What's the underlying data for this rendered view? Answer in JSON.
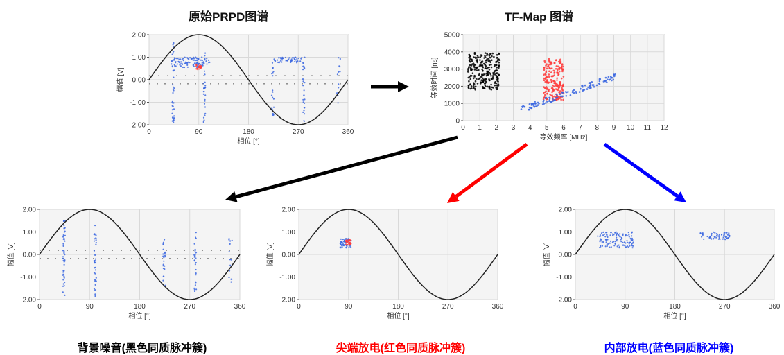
{
  "titles": {
    "prpd": "原始PRPD图谱",
    "tfmap": "TF-Map 图谱"
  },
  "captions": {
    "noise": "背景噪音(黑色同质脉冲簇)",
    "corona": "尖端放电(红色同质脉冲簇)",
    "internal": "内部放电(蓝色同质脉冲簇)"
  },
  "colors": {
    "noise": "#000000",
    "corona": "#ff0000",
    "internal": "#0000ff",
    "cluster_blue": "#3a66e0",
    "cluster_red": "#ff3b3b",
    "grid": "#d9d9d9",
    "plot_bg": "#f4f4f4"
  },
  "prpd_axes": {
    "xlabel": "相位 [°]",
    "ylabel": "幅值 [V]",
    "xticks": [
      "0",
      "90",
      "180",
      "270",
      "360"
    ],
    "yticks": [
      "2.00",
      "1.00",
      "0.00",
      "-1.00",
      "-2.00"
    ]
  },
  "tfmap_axes": {
    "xlabel": "等效频率 [MHz]",
    "ylabel": "等效时间 [ns]",
    "xticks": [
      "0",
      "1",
      "2",
      "3",
      "4",
      "5",
      "6",
      "7",
      "8",
      "9",
      "10",
      "11",
      "12"
    ],
    "yticks": [
      "5000",
      "4000",
      "3000",
      "2000",
      "1000",
      "0"
    ]
  },
  "chart_data": [
    {
      "type": "scatter",
      "id": "prpd-original",
      "title": "原始PRPD图谱",
      "xlabel": "相位 [°]",
      "ylabel": "幅值 [V]",
      "xlim": [
        0,
        360
      ],
      "ylim": [
        -2,
        2
      ],
      "reference_sine_amplitude": 2,
      "clusters": [
        {
          "color": "blue",
          "x": [
            40,
            110
          ],
          "y": [
            0.55,
            1.0
          ],
          "n": 90
        },
        {
          "color": "blue",
          "x": [
            225,
            280
          ],
          "y": [
            0.75,
            1.0
          ],
          "n": 50
        },
        {
          "color": "red",
          "x": [
            85,
            95
          ],
          "y": [
            0.45,
            0.65
          ],
          "n": 30
        },
        {
          "color": "blue",
          "x": [
            42,
            46
          ],
          "y": [
            -2.0,
            1.7
          ],
          "n": 40
        },
        {
          "color": "blue",
          "x": [
            98,
            102
          ],
          "y": [
            -1.9,
            1.3
          ],
          "n": 30
        },
        {
          "color": "blue",
          "x": [
            222,
            226
          ],
          "y": [
            -1.6,
            0.8
          ],
          "n": 20
        },
        {
          "color": "blue",
          "x": [
            278,
            282
          ],
          "y": [
            -1.9,
            1.0
          ],
          "n": 25
        },
        {
          "color": "blue",
          "x": [
            340,
            346
          ],
          "y": [
            -1.3,
            1.0
          ],
          "n": 12
        }
      ]
    },
    {
      "type": "scatter",
      "id": "tf-map",
      "title": "TF-Map 图谱",
      "xlabel": "等效频率 [MHz]",
      "ylabel": "等效时间 [ns]",
      "xlim": [
        0,
        12
      ],
      "ylim": [
        0,
        5000
      ],
      "clusters": [
        {
          "color": "black",
          "x": [
            0.3,
            2.2
          ],
          "y": [
            1800,
            4000
          ],
          "n": 260
        },
        {
          "color": "red",
          "x": [
            4.8,
            6.0
          ],
          "y": [
            1200,
            3600
          ],
          "n": 200
        },
        {
          "color": "blue",
          "x": [
            3.3,
            9.2
          ],
          "y": [
            600,
            2700
          ],
          "n": 120
        }
      ]
    },
    {
      "type": "scatter",
      "id": "prpd-noise",
      "title": "背景噪音(黑色同质脉冲簇)",
      "xlabel": "相位 [°]",
      "ylabel": "幅值 [V]",
      "xlim": [
        0,
        360
      ],
      "ylim": [
        -2,
        2
      ],
      "clusters": [
        {
          "color": "blue",
          "x": [
            42,
            46
          ],
          "y": [
            -2.0,
            1.7
          ],
          "n": 45
        },
        {
          "color": "blue",
          "x": [
            98,
            102
          ],
          "y": [
            -1.9,
            1.3
          ],
          "n": 35
        },
        {
          "color": "blue",
          "x": [
            222,
            226
          ],
          "y": [
            -1.6,
            0.8
          ],
          "n": 22
        },
        {
          "color": "blue",
          "x": [
            278,
            282
          ],
          "y": [
            -1.9,
            1.1
          ],
          "n": 28
        },
        {
          "color": "blue",
          "x": [
            340,
            346
          ],
          "y": [
            -1.3,
            1.0
          ],
          "n": 14
        }
      ]
    },
    {
      "type": "scatter",
      "id": "prpd-corona",
      "title": "尖端放电(红色同质脉冲簇)",
      "xlabel": "相位 [°]",
      "ylabel": "幅值 [V]",
      "xlim": [
        0,
        360
      ],
      "ylim": [
        -2,
        2
      ],
      "clusters": [
        {
          "color": "blue",
          "x": [
            75,
            95
          ],
          "y": [
            0.3,
            0.7
          ],
          "n": 60
        },
        {
          "color": "red",
          "x": [
            85,
            95
          ],
          "y": [
            0.4,
            0.65
          ],
          "n": 30
        }
      ]
    },
    {
      "type": "scatter",
      "id": "prpd-internal",
      "title": "内部放电(蓝色同质脉冲簇)",
      "xlabel": "相位 [°]",
      "ylabel": "幅值 [V]",
      "xlim": [
        0,
        360
      ],
      "ylim": [
        -2,
        2
      ],
      "clusters": [
        {
          "color": "blue",
          "x": [
            40,
            105
          ],
          "y": [
            0.3,
            1.0
          ],
          "n": 110
        },
        {
          "color": "blue",
          "x": [
            225,
            280
          ],
          "y": [
            0.65,
            1.0
          ],
          "n": 60
        }
      ]
    }
  ]
}
